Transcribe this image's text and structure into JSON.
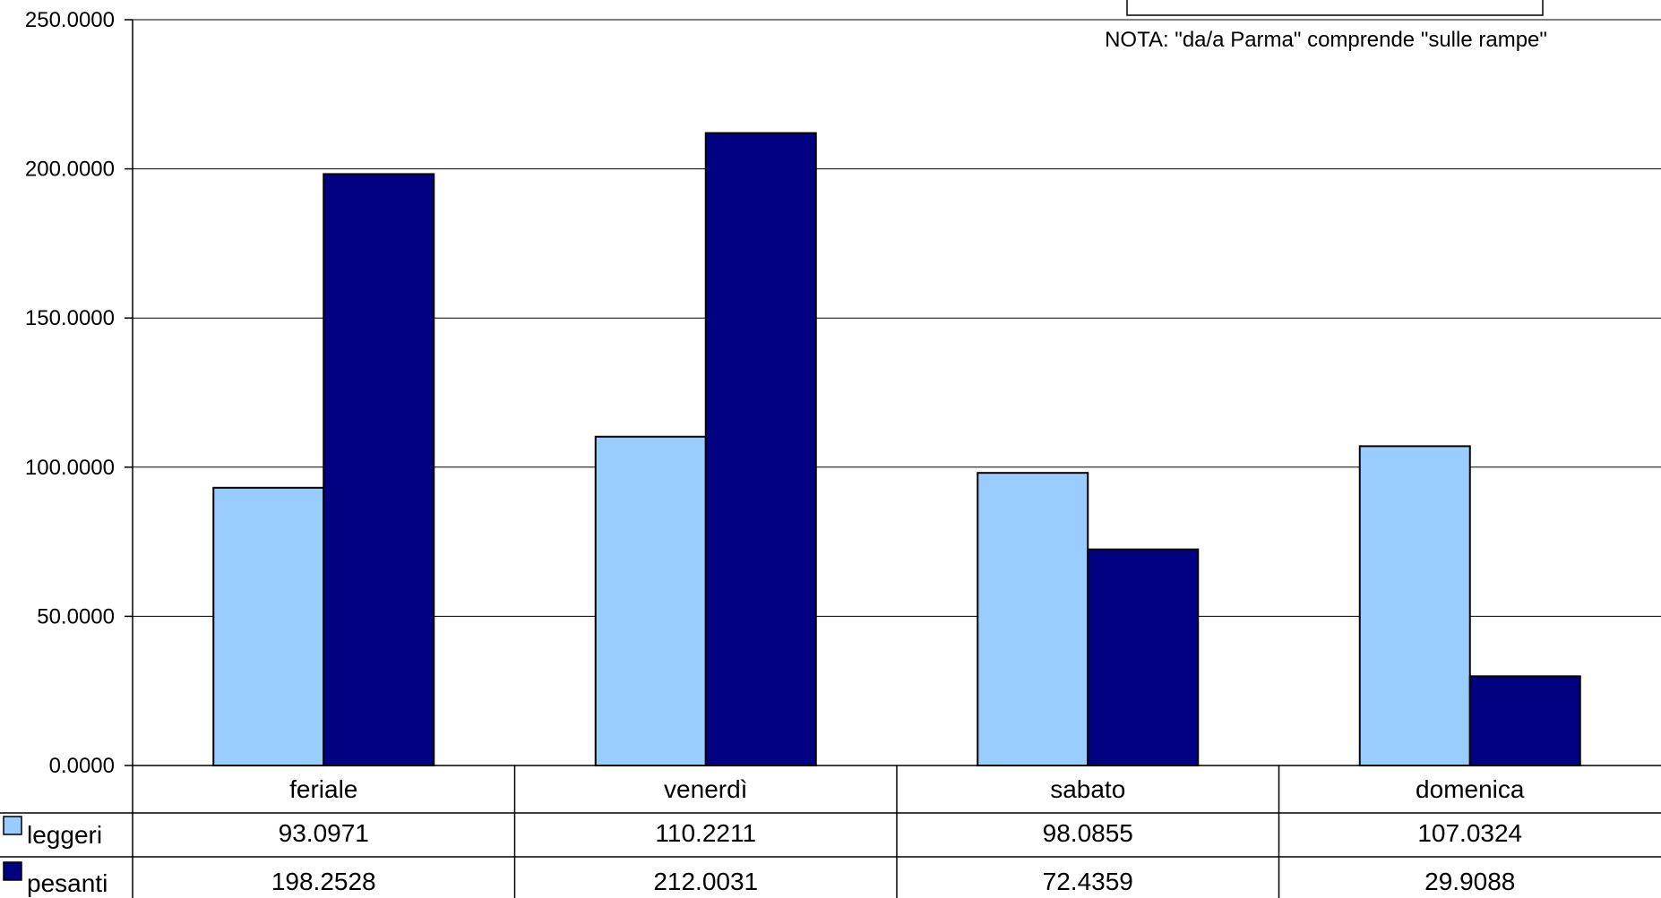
{
  "chart_data": {
    "type": "bar",
    "categories": [
      "feriale",
      "venerdì",
      "sabato",
      "domenica"
    ],
    "series": [
      {
        "name": "leggeri",
        "values": [
          93.0971,
          110.2211,
          98.0855,
          107.0324
        ],
        "color": "#99ccff"
      },
      {
        "name": "pesanti",
        "values": [
          198.2528,
          212.0031,
          72.4359,
          29.9088
        ],
        "color": "#000080"
      }
    ],
    "ylim": [
      0,
      250
    ],
    "yticks": [
      "0.0000",
      "50.0000",
      "100.0000",
      "150.0000",
      "200.0000",
      "250.0000"
    ],
    "table_values": [
      [
        "93.0971",
        "110.2211",
        "98.0855",
        "107.0324"
      ],
      [
        "198.2528",
        "212.0031",
        "72.4359",
        "29.9088"
      ]
    ],
    "grid": true,
    "legend_placement": "data-table-left",
    "annotation": "NOTA: \"da/a Parma\" comprende \"sulle rampe\""
  }
}
